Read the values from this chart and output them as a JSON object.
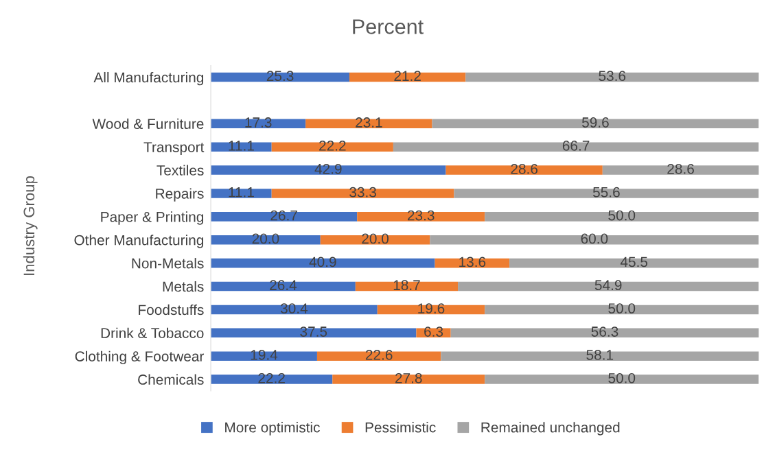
{
  "chart_data": {
    "type": "bar",
    "orientation": "horizontal",
    "stacked": true,
    "title": "Percent",
    "ylabel": "Industry Group",
    "categories": [
      "All Manufacturing",
      null,
      "Wood & Furniture",
      "Transport",
      "Textiles",
      "Repairs",
      "Paper & Printing",
      "Other Manufacturing",
      "Non-Metals",
      "Metals",
      "Foodstuffs",
      "Drink & Tobacco",
      "Clothing & Footwear",
      "Chemicals"
    ],
    "series": [
      {
        "name": "More optimistic",
        "color": "#4472c4",
        "values": [
          25.3,
          null,
          17.3,
          11.1,
          42.9,
          11.1,
          26.7,
          20,
          40.9,
          26.4,
          30.4,
          37.5,
          19.4,
          22.2
        ],
        "value_labels": [
          "25.3",
          null,
          "17.3",
          "11.1",
          "42.9",
          "11.1",
          "26.7",
          "20.0",
          "40.9",
          "26.4",
          "30.4",
          "37.5",
          "19.4",
          "22.2"
        ]
      },
      {
        "name": "Pessimistic",
        "color": "#ed7d31",
        "values": [
          21.2,
          null,
          23.1,
          22.2,
          28.6,
          33.3,
          23.3,
          20,
          13.6,
          18.7,
          19.6,
          6.3,
          22.6,
          27.8
        ],
        "value_labels": [
          "21.2",
          null,
          "23.1",
          "22.2",
          "28.6",
          "33.3",
          "23.3",
          "20.0",
          "13.6",
          "18.7",
          "19.6",
          "6.3",
          "22.6",
          "27.8"
        ]
      },
      {
        "name": "Remained unchanged",
        "color": "#a5a5a5",
        "values": [
          53.6,
          null,
          59.6,
          66.7,
          28.6,
          55.6,
          50,
          60,
          45.5,
          54.9,
          50,
          56.3,
          58.1,
          50
        ],
        "value_labels": [
          "53.6",
          null,
          "59.6",
          "66.7",
          "28.6",
          "55.6",
          "50.0",
          "60.0",
          "45.5",
          "54.9",
          "50.0",
          "56.3",
          "58.1",
          "50.0"
        ]
      }
    ],
    "xlim": [
      0,
      100
    ],
    "tick_labels": "y",
    "legend": "bottom",
    "grid": false
  }
}
